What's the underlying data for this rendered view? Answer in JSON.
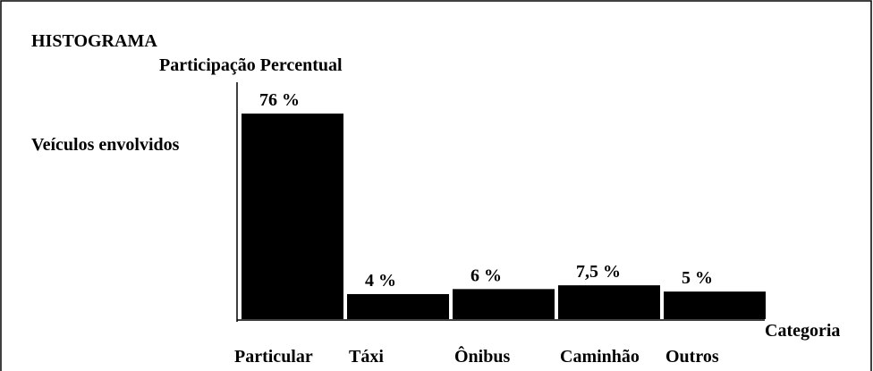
{
  "chart_data": {
    "type": "bar",
    "title": "HISTOGRAMA",
    "ylabel": "Participação Percentual",
    "xlabel": "Categoria",
    "annotations": [
      "Veículos envolvidos"
    ],
    "categories": [
      "Particular",
      "Táxi",
      "Ônibus",
      "Caminhão",
      "Outros"
    ],
    "values": [
      76,
      4,
      6,
      7.5,
      5
    ],
    "value_labels": [
      "76 %",
      "4 %",
      "6 %",
      "7,5 %",
      "5 %"
    ],
    "color": "#000000",
    "ylim": [
      -6,
      88.5
    ]
  }
}
